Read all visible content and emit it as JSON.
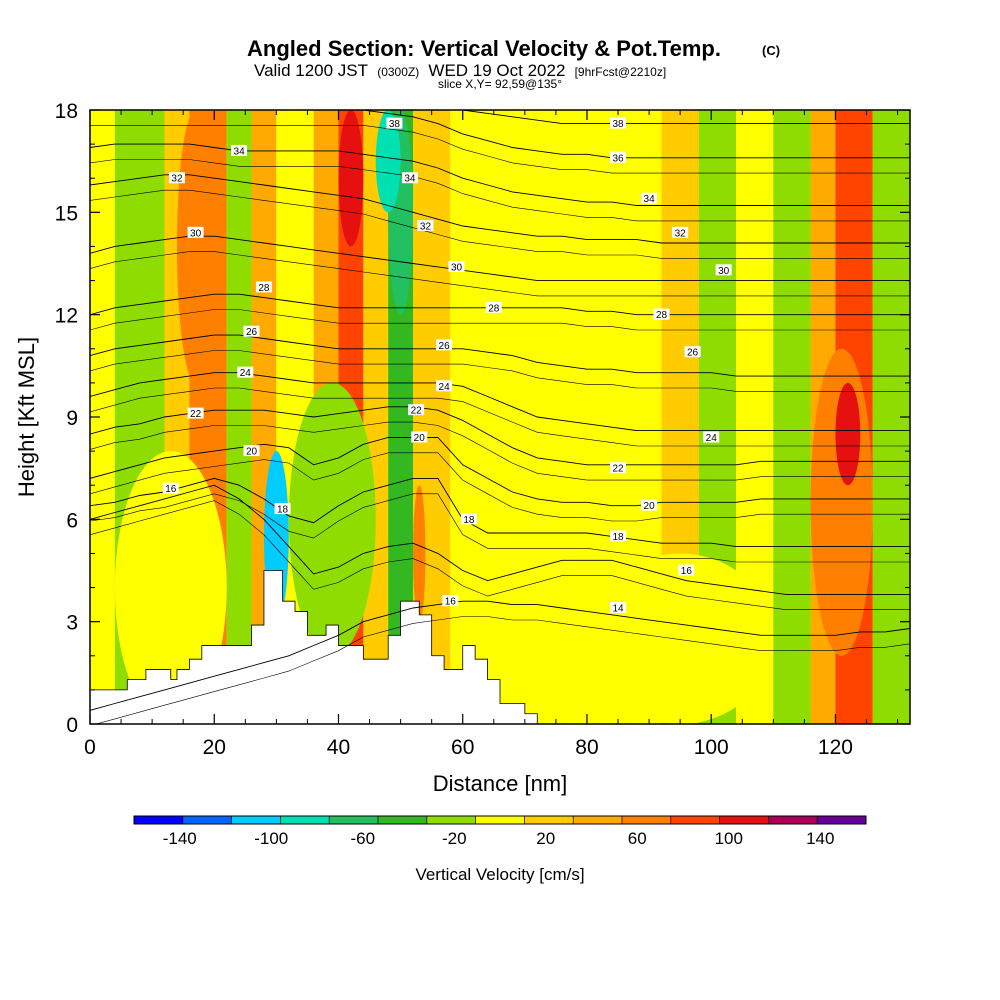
{
  "chart_data": {
    "type": "heatmap",
    "title": "Angled Section: Vertical Velocity & Pot.Temp.",
    "title_suffix": "(C)",
    "subtitle_parts": [
      "Valid 1200 JST",
      "(0300Z)",
      "WED 19 Oct 2022",
      "[9hrFcst@2210z]"
    ],
    "slice_label": "slice X,Y= 92,59@135°",
    "xlabel": "Distance [nm]",
    "ylabel": "Height [Kft MSL]",
    "xlim": [
      0,
      132
    ],
    "ylim": [
      0,
      18
    ],
    "x_ticks": [
      0,
      20,
      40,
      60,
      80,
      100,
      120
    ],
    "y_ticks": [
      0,
      3,
      6,
      9,
      12,
      15,
      18
    ],
    "x_tick_labels": [
      "0",
      "20",
      "40",
      "60",
      "80",
      "100",
      "120"
    ],
    "y_tick_labels": [
      "0",
      "3",
      "6",
      "9",
      "12",
      "15",
      "18"
    ],
    "colorbar": {
      "label": "Vertical Velocity [cm/s]",
      "colors": [
        "#0000ff",
        "#0066ff",
        "#00ccff",
        "#00e0b0",
        "#22c060",
        "#33b822",
        "#8fdc00",
        "#ffff00",
        "#ffcc00",
        "#ffaa00",
        "#ff7f00",
        "#ff4400",
        "#e61010",
        "#aa0055",
        "#660099"
      ],
      "ticks": [
        -140,
        -100,
        -60,
        -20,
        20,
        60,
        100,
        140
      ],
      "tick_labels": [
        "-140",
        "-100",
        "-60",
        "-20",
        "20",
        "60",
        "100",
        "140"
      ],
      "range": [
        -160,
        160
      ]
    },
    "velocity_bands": [
      {
        "x0": 0,
        "x1": 4,
        "value": 10
      },
      {
        "x0": 4,
        "x1": 12,
        "value": -15
      },
      {
        "x0": 12,
        "x1": 16,
        "value": 30
      },
      {
        "x0": 16,
        "x1": 22,
        "value": 55
      },
      {
        "x0": 22,
        "x1": 26,
        "value": -20
      },
      {
        "x0": 26,
        "x1": 30,
        "value": 35
      },
      {
        "x0": 30,
        "x1": 36,
        "value": -10
      },
      {
        "x0": 36,
        "x1": 40,
        "value": 40
      },
      {
        "x0": 40,
        "x1": 44,
        "value": 90
      },
      {
        "x0": 44,
        "x1": 48,
        "value": 20
      },
      {
        "x0": 48,
        "x1": 52,
        "value": -50
      },
      {
        "x0": 52,
        "x1": 54,
        "value": 30
      },
      {
        "x0": 54,
        "x1": 58,
        "value": 15
      },
      {
        "x0": 58,
        "x1": 66,
        "value": -5
      },
      {
        "x0": 66,
        "x1": 74,
        "value": 10
      },
      {
        "x0": 74,
        "x1": 84,
        "value": 5
      },
      {
        "x0": 84,
        "x1": 92,
        "value": -8
      },
      {
        "x0": 92,
        "x1": 98,
        "value": 12
      },
      {
        "x0": 98,
        "x1": 104,
        "value": -12
      },
      {
        "x0": 104,
        "x1": 110,
        "value": 10
      },
      {
        "x0": 110,
        "x1": 116,
        "value": -15
      },
      {
        "x0": 116,
        "x1": 120,
        "value": 45
      },
      {
        "x0": 120,
        "x1": 126,
        "value": 75
      },
      {
        "x0": 126,
        "x1": 132,
        "value": -18
      }
    ],
    "velocity_cells": [
      {
        "x0": 4,
        "x1": 22,
        "y0": 0,
        "y1": 8,
        "value": -5
      },
      {
        "x0": 28,
        "x1": 32,
        "y0": 3,
        "y1": 8,
        "value": -110
      },
      {
        "x0": 48,
        "x1": 52,
        "y0": 12,
        "y1": 18,
        "value": -70
      },
      {
        "x0": 46,
        "x1": 50,
        "y0": 15,
        "y1": 18,
        "value": -85
      },
      {
        "x0": 32,
        "x1": 46,
        "y0": 2,
        "y1": 10,
        "value": -30
      },
      {
        "x0": 40,
        "x1": 44,
        "y0": 14,
        "y1": 18,
        "value": 110
      },
      {
        "x0": 116,
        "x1": 126,
        "y0": 2,
        "y1": 11,
        "value": 60
      },
      {
        "x0": 120,
        "x1": 124,
        "y0": 7,
        "y1": 10,
        "value": 100
      },
      {
        "x0": 80,
        "x1": 110,
        "y0": 0,
        "y1": 5,
        "value": 8
      },
      {
        "x0": 126,
        "x1": 132,
        "y0": 12,
        "y1": 18,
        "value": -30
      },
      {
        "x0": 14,
        "x1": 20,
        "y0": 10,
        "y1": 18,
        "value": 70
      },
      {
        "x0": 52,
        "x1": 54,
        "y0": 3,
        "y1": 7,
        "value": 70
      }
    ],
    "terrain": [
      [
        0,
        1.0
      ],
      [
        5,
        1.0
      ],
      [
        6,
        1.3
      ],
      [
        9,
        1.6
      ],
      [
        12,
        1.6
      ],
      [
        13,
        1.3
      ],
      [
        14,
        1.6
      ],
      [
        16,
        1.9
      ],
      [
        18,
        2.3
      ],
      [
        24,
        2.3
      ],
      [
        26,
        2.9
      ],
      [
        28,
        4.5
      ],
      [
        30,
        4.5
      ],
      [
        31,
        3.6
      ],
      [
        33,
        3.3
      ],
      [
        35,
        2.6
      ],
      [
        38,
        2.9
      ],
      [
        40,
        2.3
      ],
      [
        42,
        2.3
      ],
      [
        44,
        1.9
      ],
      [
        46,
        1.9
      ],
      [
        48,
        2.6
      ],
      [
        50,
        3.6
      ],
      [
        53,
        3.2
      ],
      [
        55,
        2.0
      ],
      [
        57,
        1.6
      ],
      [
        60,
        2.3
      ],
      [
        62,
        1.9
      ],
      [
        64,
        1.3
      ],
      [
        66,
        0.6
      ],
      [
        70,
        0.3
      ],
      [
        72,
        0.0
      ],
      [
        132,
        0.0
      ]
    ],
    "isentropes": [
      {
        "label": "14",
        "y": [
          0.4,
          0.6,
          0.8,
          1.0,
          1.2,
          1.4,
          1.6,
          1.8,
          2.0,
          2.3,
          2.6,
          3.0,
          3.2,
          3.4,
          3.5,
          3.6,
          3.6,
          3.5,
          3.5,
          3.4,
          3.3,
          3.2,
          3.1,
          3.0,
          2.9,
          2.8,
          2.7,
          2.6,
          2.6,
          2.6,
          2.6,
          2.7,
          2.7,
          2.8
        ]
      },
      {
        "label": "16",
        "y": [
          6.0,
          6.2,
          6.4,
          6.6,
          6.8,
          7.0,
          6.6,
          6.0,
          5.2,
          4.4,
          4.6,
          5.0,
          5.2,
          5.3,
          5.0,
          4.5,
          4.2,
          4.4,
          4.6,
          4.8,
          4.8,
          4.8,
          4.6,
          4.4,
          4.2,
          4.1,
          4.0,
          3.9,
          3.8,
          3.8,
          3.8,
          3.8,
          3.8,
          3.8
        ]
      },
      {
        "label": "18",
        "y": [
          6.4,
          6.5,
          6.7,
          6.8,
          7.0,
          7.2,
          7.0,
          6.6,
          6.1,
          5.9,
          6.4,
          6.8,
          7.0,
          7.2,
          7.2,
          6.0,
          5.6,
          5.6,
          5.6,
          5.6,
          5.6,
          5.5,
          5.4,
          5.3,
          5.3,
          5.3,
          5.2,
          5.2,
          5.2,
          5.2,
          5.2,
          5.2,
          5.2,
          5.2
        ]
      },
      {
        "label": "20",
        "y": [
          7.2,
          7.4,
          7.6,
          7.8,
          7.9,
          8.0,
          8.1,
          8.2,
          8.1,
          7.6,
          7.8,
          8.2,
          8.4,
          8.4,
          8.4,
          7.6,
          7.2,
          6.8,
          6.6,
          6.5,
          6.5,
          6.4,
          6.4,
          6.5,
          6.5,
          6.5,
          6.5,
          6.6,
          6.6,
          6.6,
          6.6,
          6.6,
          6.6,
          6.6
        ]
      },
      {
        "label": "22",
        "y": [
          8.5,
          8.7,
          8.8,
          9.0,
          9.1,
          9.2,
          9.2,
          9.2,
          9.1,
          9.0,
          9.1,
          9.2,
          9.3,
          9.3,
          9.2,
          8.9,
          8.5,
          8.1,
          7.8,
          7.7,
          7.6,
          7.6,
          7.6,
          7.6,
          7.6,
          7.6,
          7.6,
          7.7,
          7.7,
          7.7,
          7.7,
          7.7,
          7.7,
          7.7
        ]
      },
      {
        "label": "24",
        "y": [
          9.6,
          9.8,
          10.0,
          10.1,
          10.2,
          10.3,
          10.3,
          10.2,
          10.1,
          10.0,
          10.0,
          10.0,
          10.0,
          10.0,
          10.0,
          9.9,
          9.6,
          9.3,
          9.0,
          8.9,
          8.8,
          8.7,
          8.6,
          8.6,
          8.6,
          8.6,
          8.6,
          8.6,
          8.6,
          8.6,
          8.6,
          8.6,
          8.6,
          8.6
        ]
      },
      {
        "label": "26",
        "y": [
          10.8,
          11.0,
          11.1,
          11.2,
          11.3,
          11.4,
          11.4,
          11.3,
          11.2,
          11.1,
          11.0,
          11.0,
          11.0,
          11.0,
          11.0,
          11.0,
          10.9,
          10.8,
          10.6,
          10.5,
          10.4,
          10.4,
          10.3,
          10.3,
          10.3,
          10.3,
          10.2,
          10.2,
          10.2,
          10.2,
          10.2,
          10.2,
          10.2,
          10.2
        ]
      },
      {
        "label": "28",
        "y": [
          12.0,
          12.2,
          12.3,
          12.4,
          12.5,
          12.6,
          12.6,
          12.5,
          12.4,
          12.3,
          12.2,
          12.2,
          12.2,
          12.2,
          12.2,
          12.2,
          12.2,
          12.2,
          12.2,
          12.2,
          12.1,
          12.1,
          12.0,
          12.0,
          12.0,
          12.0,
          12.0,
          12.0,
          12.0,
          12.0,
          12.0,
          12.0,
          12.0,
          12.0
        ]
      },
      {
        "label": "30",
        "y": [
          13.8,
          14.0,
          14.1,
          14.2,
          14.3,
          14.3,
          14.2,
          14.1,
          14.0,
          13.9,
          13.8,
          13.7,
          13.6,
          13.5,
          13.4,
          13.3,
          13.2,
          13.1,
          13.0,
          13.0,
          13.0,
          13.0,
          13.0,
          13.0,
          13.0,
          13.0,
          13.0,
          13.0,
          13.0,
          13.0,
          13.0,
          13.0,
          13.0,
          13.0
        ]
      },
      {
        "label": "32",
        "y": [
          15.8,
          15.9,
          16.0,
          16.1,
          16.1,
          16.0,
          15.9,
          15.8,
          15.7,
          15.6,
          15.5,
          15.4,
          15.2,
          15.0,
          14.8,
          14.6,
          14.5,
          14.4,
          14.3,
          14.3,
          14.2,
          14.2,
          14.2,
          14.1,
          14.1,
          14.1,
          14.1,
          14.1,
          14.1,
          14.1,
          14.1,
          14.1,
          14.1,
          14.1
        ]
      },
      {
        "label": "34",
        "y": [
          16.9,
          17.0,
          17.0,
          17.0,
          17.0,
          16.9,
          16.8,
          16.8,
          16.8,
          16.8,
          16.8,
          16.7,
          16.6,
          16.5,
          16.3,
          16.0,
          15.8,
          15.6,
          15.5,
          15.4,
          15.3,
          15.3,
          15.2,
          15.2,
          15.2,
          15.2,
          15.2,
          15.2,
          15.2,
          15.2,
          15.2,
          15.2,
          15.2,
          15.2
        ]
      },
      {
        "label": "36",
        "y": [
          18.0,
          18.0,
          18.0,
          18.0,
          18.0,
          18.0,
          18.0,
          18.0,
          18.0,
          18.0,
          18.0,
          18.0,
          17.9,
          17.8,
          17.6,
          17.3,
          17.1,
          16.9,
          16.8,
          16.7,
          16.7,
          16.6,
          16.6,
          16.6,
          16.6,
          16.6,
          16.6,
          16.6,
          16.6,
          16.6,
          16.6,
          16.6,
          16.6,
          16.6
        ]
      },
      {
        "label": "38",
        "y": [
          null,
          null,
          null,
          null,
          null,
          null,
          null,
          null,
          null,
          null,
          null,
          null,
          null,
          null,
          null,
          18.0,
          17.9,
          17.8,
          17.7,
          17.6,
          17.6,
          17.6,
          17.6,
          17.6,
          17.6,
          17.6,
          17.6,
          17.6,
          17.6,
          17.6,
          17.6,
          17.6,
          17.6,
          17.6
        ]
      }
    ],
    "isentrope_x_step": 4,
    "contour_labels": [
      {
        "text": "38",
        "x": 49,
        "y": 17.6
      },
      {
        "text": "34",
        "x": 51.5,
        "y": 16.0
      },
      {
        "text": "32",
        "x": 54,
        "y": 14.6
      },
      {
        "text": "30",
        "x": 59,
        "y": 13.4
      },
      {
        "text": "28",
        "x": 65,
        "y": 12.2
      },
      {
        "text": "26",
        "x": 57,
        "y": 11.1
      },
      {
        "text": "24",
        "x": 57,
        "y": 9.9
      },
      {
        "text": "22",
        "x": 52.5,
        "y": 9.2
      },
      {
        "text": "20",
        "x": 53,
        "y": 8.4
      },
      {
        "text": "18",
        "x": 61,
        "y": 6.0
      },
      {
        "text": "16",
        "x": 58,
        "y": 3.6
      },
      {
        "text": "34",
        "x": 24,
        "y": 16.8
      },
      {
        "text": "32",
        "x": 14,
        "y": 16.0
      },
      {
        "text": "30",
        "x": 17,
        "y": 14.4
      },
      {
        "text": "28",
        "x": 28,
        "y": 12.8
      },
      {
        "text": "26",
        "x": 26,
        "y": 11.5
      },
      {
        "text": "24",
        "x": 25,
        "y": 10.3
      },
      {
        "text": "22",
        "x": 17,
        "y": 9.1
      },
      {
        "text": "20",
        "x": 26,
        "y": 8.0
      },
      {
        "text": "18",
        "x": 31,
        "y": 6.3
      },
      {
        "text": "16",
        "x": 13,
        "y": 6.9
      },
      {
        "text": "38",
        "x": 85,
        "y": 17.6
      },
      {
        "text": "36",
        "x": 85,
        "y": 16.6
      },
      {
        "text": "34",
        "x": 90,
        "y": 15.4
      },
      {
        "text": "32",
        "x": 95,
        "y": 14.4
      },
      {
        "text": "30",
        "x": 102,
        "y": 13.3
      },
      {
        "text": "28",
        "x": 92,
        "y": 12.0
      },
      {
        "text": "26",
        "x": 97,
        "y": 10.9
      },
      {
        "text": "24",
        "x": 100,
        "y": 8.4
      },
      {
        "text": "22",
        "x": 85,
        "y": 7.5
      },
      {
        "text": "20",
        "x": 90,
        "y": 6.4
      },
      {
        "text": "18",
        "x": 85,
        "y": 5.5
      },
      {
        "text": "16",
        "x": 96,
        "y": 4.5
      },
      {
        "text": "14",
        "x": 85,
        "y": 3.4
      }
    ]
  }
}
